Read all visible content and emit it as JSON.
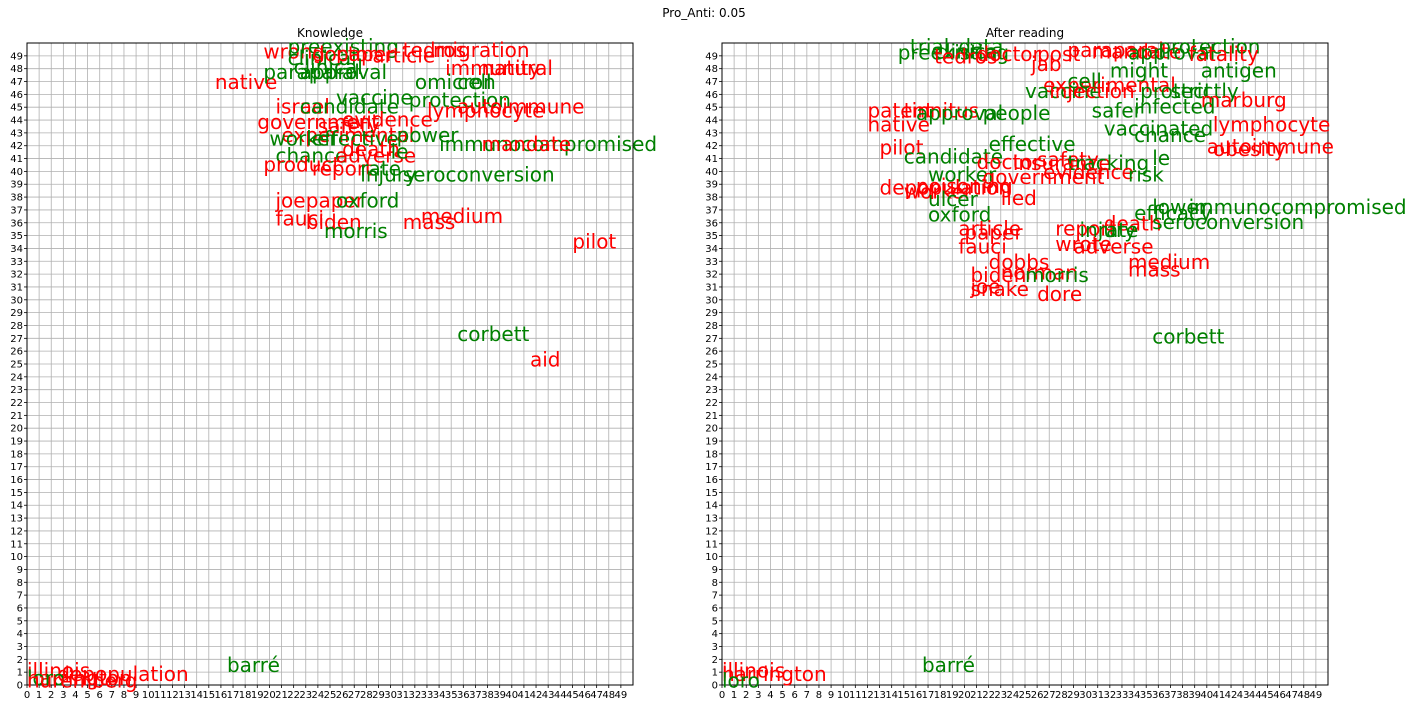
{
  "figure_title": "Pro_Anti: 0.05",
  "colors": {
    "pro": "#008000",
    "anti": "#ff0000",
    "grid": "#b0b0b0",
    "axis": "#000000"
  },
  "chart_data": [
    {
      "type": "scatter",
      "title": "Knowledge",
      "xlim": [
        0,
        50
      ],
      "ylim": [
        0,
        50
      ],
      "xticks": [
        0,
        1,
        2,
        3,
        4,
        5,
        6,
        7,
        8,
        9,
        10,
        11,
        12,
        13,
        14,
        15,
        16,
        17,
        18,
        19,
        20,
        21,
        22,
        23,
        24,
        25,
        26,
        27,
        28,
        29,
        30,
        31,
        32,
        33,
        34,
        35,
        36,
        37,
        38,
        39,
        40,
        41,
        42,
        43,
        44,
        45,
        46,
        47,
        48,
        49
      ],
      "yticks": [
        0,
        1,
        2,
        3,
        4,
        5,
        6,
        7,
        8,
        9,
        10,
        11,
        12,
        13,
        14,
        15,
        16,
        17,
        18,
        19,
        20,
        21,
        22,
        23,
        24,
        25,
        26,
        27,
        28,
        29,
        30,
        31,
        32,
        33,
        34,
        35,
        36,
        37,
        38,
        39,
        40,
        41,
        42,
        43,
        44,
        45,
        46,
        47,
        48,
        49
      ],
      "grid": true,
      "points": [
        {
          "text": "wrong",
          "x": 19.5,
          "y": 48.8,
          "color": "anti"
        },
        {
          "text": "preexisting",
          "x": 21.5,
          "y": 49.2,
          "color": "pro"
        },
        {
          "text": "clinical",
          "x": 21.5,
          "y": 48.3,
          "color": "pro"
        },
        {
          "text": "doctor",
          "x": 23.5,
          "y": 48.6,
          "color": "anti"
        },
        {
          "text": "paper",
          "x": 25.5,
          "y": 48.6,
          "color": "anti"
        },
        {
          "text": "article",
          "x": 28.5,
          "y": 48.5,
          "color": "anti"
        },
        {
          "text": "tedros",
          "x": 31,
          "y": 48.9,
          "color": "anti"
        },
        {
          "text": "migration",
          "x": 33.5,
          "y": 48.9,
          "color": "anti"
        },
        {
          "text": "clinical",
          "x": 22,
          "y": 47.6,
          "color": "pro"
        },
        {
          "text": "native",
          "x": 15.5,
          "y": 46.4,
          "color": "anti"
        },
        {
          "text": "paraparal",
          "x": 19.5,
          "y": 47.2,
          "color": "pro"
        },
        {
          "text": "approval",
          "x": 22.5,
          "y": 47.2,
          "color": "pro"
        },
        {
          "text": "immunity",
          "x": 34.5,
          "y": 47.5,
          "color": "anti"
        },
        {
          "text": "natural",
          "x": 37.5,
          "y": 47.5,
          "color": "anti"
        },
        {
          "text": "omicron",
          "x": 32,
          "y": 46.4,
          "color": "pro"
        },
        {
          "text": "cell",
          "x": 35.5,
          "y": 46.4,
          "color": "pro"
        },
        {
          "text": "vaccine",
          "x": 25.5,
          "y": 45.2,
          "color": "pro"
        },
        {
          "text": "israel",
          "x": 20.5,
          "y": 44.5,
          "color": "anti"
        },
        {
          "text": "candidate",
          "x": 22.5,
          "y": 44.5,
          "color": "pro"
        },
        {
          "text": "protection",
          "x": 31.5,
          "y": 45.0,
          "color": "pro"
        },
        {
          "text": "autoimmune",
          "x": 35.5,
          "y": 44.5,
          "color": "anti"
        },
        {
          "text": "lymphocyte",
          "x": 33,
          "y": 44.2,
          "color": "anti"
        },
        {
          "text": "government",
          "x": 19,
          "y": 43.3,
          "color": "anti"
        },
        {
          "text": "evidence",
          "x": 26,
          "y": 43.5,
          "color": "anti"
        },
        {
          "text": "safety",
          "x": 24,
          "y": 43.0,
          "color": "anti"
        },
        {
          "text": "experimental",
          "x": 21,
          "y": 42.3,
          "color": "anti"
        },
        {
          "text": "worker",
          "x": 20,
          "y": 42.0,
          "color": "pro"
        },
        {
          "text": "effective",
          "x": 23.5,
          "y": 42.0,
          "color": "pro"
        },
        {
          "text": "power",
          "x": 30.5,
          "y": 42.3,
          "color": "pro"
        },
        {
          "text": "immunocompromised",
          "x": 34,
          "y": 41.6,
          "color": "pro"
        },
        {
          "text": "mandate",
          "x": 37.5,
          "y": 41.6,
          "color": "anti"
        },
        {
          "text": "death",
          "x": 26,
          "y": 41.2,
          "color": "anti"
        },
        {
          "text": "chance",
          "x": 20.5,
          "y": 40.7,
          "color": "pro"
        },
        {
          "text": "adverse",
          "x": 25.5,
          "y": 40.7,
          "color": "anti"
        },
        {
          "text": "le",
          "x": 30,
          "y": 41.0,
          "color": "pro"
        },
        {
          "text": "product",
          "x": 19.5,
          "y": 40.0,
          "color": "anti"
        },
        {
          "text": "report",
          "x": 23.5,
          "y": 39.7,
          "color": "anti"
        },
        {
          "text": "rate",
          "x": 27.5,
          "y": 39.7,
          "color": "pro"
        },
        {
          "text": "injury",
          "x": 27.5,
          "y": 39.2,
          "color": "pro"
        },
        {
          "text": "seroconversion",
          "x": 31,
          "y": 39.2,
          "color": "pro"
        },
        {
          "text": "joe",
          "x": 20.5,
          "y": 37.2,
          "color": "anti"
        },
        {
          "text": "paper",
          "x": 23,
          "y": 37.2,
          "color": "anti"
        },
        {
          "text": "oxford",
          "x": 25.5,
          "y": 37.2,
          "color": "pro"
        },
        {
          "text": "fauci",
          "x": 20.5,
          "y": 35.8,
          "color": "anti"
        },
        {
          "text": "biden",
          "x": 23,
          "y": 35.5,
          "color": "anti"
        },
        {
          "text": "medium",
          "x": 32.5,
          "y": 36.0,
          "color": "anti"
        },
        {
          "text": "mass",
          "x": 31,
          "y": 35.5,
          "color": "anti"
        },
        {
          "text": "morris",
          "x": 24.5,
          "y": 34.8,
          "color": "pro"
        },
        {
          "text": "pilot",
          "x": 45,
          "y": 34.0,
          "color": "anti"
        },
        {
          "text": "corbett",
          "x": 35.5,
          "y": 26.8,
          "color": "pro"
        },
        {
          "text": "aid",
          "x": 41.5,
          "y": 24.8,
          "color": "anti"
        },
        {
          "text": "barré",
          "x": 16.5,
          "y": 1.0,
          "color": "pro"
        },
        {
          "text": "illinois",
          "x": 0,
          "y": 0.6,
          "color": "anti"
        },
        {
          "text": "harrington",
          "x": 0,
          "y": 0.0,
          "color": "anti"
        },
        {
          "text": "depopulation",
          "x": 2.5,
          "y": 0.3,
          "color": "anti"
        },
        {
          "text": "loro",
          "x": 0,
          "y": 0.0,
          "color": "pro"
        },
        {
          "text": "nuremberg",
          "x": 0,
          "y": -0.2,
          "color": "anti"
        }
      ]
    },
    {
      "type": "scatter",
      "title": "After reading",
      "xlim": [
        0,
        50
      ],
      "ylim": [
        0,
        50
      ],
      "xticks": [
        0,
        1,
        2,
        3,
        4,
        5,
        6,
        7,
        8,
        9,
        10,
        11,
        12,
        13,
        14,
        15,
        16,
        17,
        18,
        19,
        20,
        21,
        22,
        23,
        24,
        25,
        26,
        27,
        28,
        29,
        30,
        31,
        32,
        33,
        34,
        35,
        36,
        37,
        38,
        39,
        40,
        41,
        42,
        43,
        44,
        45,
        46,
        47,
        48,
        49
      ],
      "yticks": [
        0,
        1,
        2,
        3,
        4,
        5,
        6,
        7,
        8,
        9,
        10,
        11,
        12,
        13,
        14,
        15,
        16,
        17,
        18,
        19,
        20,
        21,
        22,
        23,
        24,
        25,
        26,
        27,
        28,
        29,
        30,
        31,
        32,
        33,
        34,
        35,
        36,
        37,
        38,
        39,
        40,
        41,
        42,
        43,
        44,
        45,
        46,
        47,
        48,
        49
      ],
      "grid": true,
      "points": [
        {
          "text": "trial",
          "x": 15.5,
          "y": 49.2,
          "color": "pro"
        },
        {
          "text": "preexisting",
          "x": 14.5,
          "y": 48.7,
          "color": "pro"
        },
        {
          "text": "clinical",
          "x": 17.5,
          "y": 48.8,
          "color": "pro"
        },
        {
          "text": "data",
          "x": 19.5,
          "y": 49.2,
          "color": "pro"
        },
        {
          "text": "tedros",
          "x": 17.5,
          "y": 48.4,
          "color": "anti"
        },
        {
          "text": "doctor",
          "x": 21,
          "y": 48.6,
          "color": "anti"
        },
        {
          "text": "jab",
          "x": 25.5,
          "y": 47.8,
          "color": "anti"
        },
        {
          "text": "post",
          "x": 26,
          "y": 48.6,
          "color": "anti"
        },
        {
          "text": "paraparal",
          "x": 28.5,
          "y": 48.9,
          "color": "anti"
        },
        {
          "text": "mandate",
          "x": 30.5,
          "y": 48.8,
          "color": "anti"
        },
        {
          "text": "protection",
          "x": 36,
          "y": 49.2,
          "color": "pro"
        },
        {
          "text": "approval",
          "x": 33.5,
          "y": 48.7,
          "color": "pro"
        },
        {
          "text": "fatality",
          "x": 38.5,
          "y": 48.6,
          "color": "anti"
        },
        {
          "text": "might",
          "x": 32,
          "y": 47.3,
          "color": "pro"
        },
        {
          "text": "antigen",
          "x": 39.5,
          "y": 47.3,
          "color": "pro"
        },
        {
          "text": "experimental",
          "x": 26.5,
          "y": 46.2,
          "color": "anti"
        },
        {
          "text": "cell",
          "x": 28.5,
          "y": 46.5,
          "color": "pro"
        },
        {
          "text": "vaccine",
          "x": 25,
          "y": 45.7,
          "color": "pro"
        },
        {
          "text": "injection",
          "x": 27,
          "y": 45.7,
          "color": "anti"
        },
        {
          "text": "protect",
          "x": 34.5,
          "y": 45.7,
          "color": "pro"
        },
        {
          "text": "strictly",
          "x": 37,
          "y": 45.7,
          "color": "pro"
        },
        {
          "text": "marburg",
          "x": 39.5,
          "y": 45.0,
          "color": "anti"
        },
        {
          "text": "infected",
          "x": 34,
          "y": 44.5,
          "color": "pro"
        },
        {
          "text": "safer",
          "x": 30.5,
          "y": 44.2,
          "color": "pro"
        },
        {
          "text": "patent",
          "x": 12,
          "y": 44.2,
          "color": "anti"
        },
        {
          "text": "tinnitus",
          "x": 15,
          "y": 44.2,
          "color": "anti"
        },
        {
          "text": "approval",
          "x": 16,
          "y": 44.0,
          "color": "pro"
        },
        {
          "text": "people",
          "x": 21.5,
          "y": 44.0,
          "color": "pro"
        },
        {
          "text": "native",
          "x": 12,
          "y": 43.1,
          "color": "anti"
        },
        {
          "text": "lymphocyte",
          "x": 40.5,
          "y": 43.1,
          "color": "anti"
        },
        {
          "text": "vaccinated",
          "x": 31.5,
          "y": 42.8,
          "color": "pro"
        },
        {
          "text": "chance",
          "x": 34,
          "y": 42.3,
          "color": "pro"
        },
        {
          "text": "effective",
          "x": 22,
          "y": 41.6,
          "color": "pro"
        },
        {
          "text": "autoimmune",
          "x": 40,
          "y": 41.4,
          "color": "anti"
        },
        {
          "text": "obesity",
          "x": 40.5,
          "y": 41.2,
          "color": "anti"
        },
        {
          "text": "pilot",
          "x": 13,
          "y": 41.3,
          "color": "anti"
        },
        {
          "text": "candidate",
          "x": 15,
          "y": 40.6,
          "color": "pro"
        },
        {
          "text": "doctor",
          "x": 21,
          "y": 40.2,
          "color": "anti"
        },
        {
          "text": "safety",
          "x": 26,
          "y": 40.4,
          "color": "anti"
        },
        {
          "text": "insurance",
          "x": 24,
          "y": 40.1,
          "color": "anti"
        },
        {
          "text": "tracking",
          "x": 28.5,
          "y": 40.1,
          "color": "pro"
        },
        {
          "text": "le",
          "x": 35.5,
          "y": 40.5,
          "color": "pro"
        },
        {
          "text": "worker",
          "x": 17,
          "y": 39.2,
          "color": "pro"
        },
        {
          "text": "evidence",
          "x": 26.5,
          "y": 39.4,
          "color": "anti"
        },
        {
          "text": "government",
          "x": 21.5,
          "y": 39.0,
          "color": "anti"
        },
        {
          "text": "risk",
          "x": 33.5,
          "y": 39.2,
          "color": "pro"
        },
        {
          "text": "depopulation",
          "x": 13,
          "y": 38.2,
          "color": "anti"
        },
        {
          "text": "poisoning",
          "x": 16,
          "y": 38.3,
          "color": "anti"
        },
        {
          "text": "worker",
          "x": 15,
          "y": 37.9,
          "color": "anti"
        },
        {
          "text": "ulcer",
          "x": 17,
          "y": 37.3,
          "color": "pro"
        },
        {
          "text": "lied",
          "x": 23,
          "y": 37.4,
          "color": "anti"
        },
        {
          "text": "lower",
          "x": 35.5,
          "y": 36.7,
          "color": "pro"
        },
        {
          "text": "immunocompromised",
          "x": 38.5,
          "y": 36.7,
          "color": "pro"
        },
        {
          "text": "oxford",
          "x": 17,
          "y": 36.1,
          "color": "pro"
        },
        {
          "text": "efficacy",
          "x": 34,
          "y": 36.2,
          "color": "pro"
        },
        {
          "text": "death",
          "x": 31.5,
          "y": 35.4,
          "color": "anti"
        },
        {
          "text": "seroconversion",
          "x": 35.5,
          "y": 35.5,
          "color": "pro"
        },
        {
          "text": "article",
          "x": 19.5,
          "y": 35.0,
          "color": "anti"
        },
        {
          "text": "paper",
          "x": 20,
          "y": 34.7,
          "color": "anti"
        },
        {
          "text": "report",
          "x": 27.5,
          "y": 35.0,
          "color": "anti"
        },
        {
          "text": "injury",
          "x": 29.5,
          "y": 34.9,
          "color": "pro"
        },
        {
          "text": "rate",
          "x": 31,
          "y": 34.9,
          "color": "pro"
        },
        {
          "text": "fauci",
          "x": 19.5,
          "y": 33.6,
          "color": "anti"
        },
        {
          "text": "wrote",
          "x": 27.5,
          "y": 33.8,
          "color": "anti"
        },
        {
          "text": "adverse",
          "x": 29,
          "y": 33.6,
          "color": "anti"
        },
        {
          "text": "dobbs",
          "x": 22,
          "y": 32.4,
          "color": "anti"
        },
        {
          "text": "medium",
          "x": 33.5,
          "y": 32.4,
          "color": "anti"
        },
        {
          "text": "mass",
          "x": 33.5,
          "y": 31.8,
          "color": "anti"
        },
        {
          "text": "biden",
          "x": 20.5,
          "y": 31.4,
          "color": "anti"
        },
        {
          "text": "norman",
          "x": 23,
          "y": 31.6,
          "color": "anti"
        },
        {
          "text": "morris",
          "x": 25,
          "y": 31.4,
          "color": "pro"
        },
        {
          "text": "joe",
          "x": 20.5,
          "y": 30.5,
          "color": "anti"
        },
        {
          "text": "snake",
          "x": 20.5,
          "y": 30.3,
          "color": "anti"
        },
        {
          "text": "dore",
          "x": 26,
          "y": 29.9,
          "color": "anti"
        },
        {
          "text": "corbett",
          "x": 35.5,
          "y": 26.6,
          "color": "pro"
        },
        {
          "text": "barré",
          "x": 16.5,
          "y": 1.0,
          "color": "pro"
        },
        {
          "text": "illinois",
          "x": 0,
          "y": 0.6,
          "color": "anti"
        },
        {
          "text": "harrington",
          "x": 0,
          "y": 0.3,
          "color": "anti"
        },
        {
          "text": "loro",
          "x": 0,
          "y": -0.2,
          "color": "pro"
        }
      ]
    }
  ]
}
